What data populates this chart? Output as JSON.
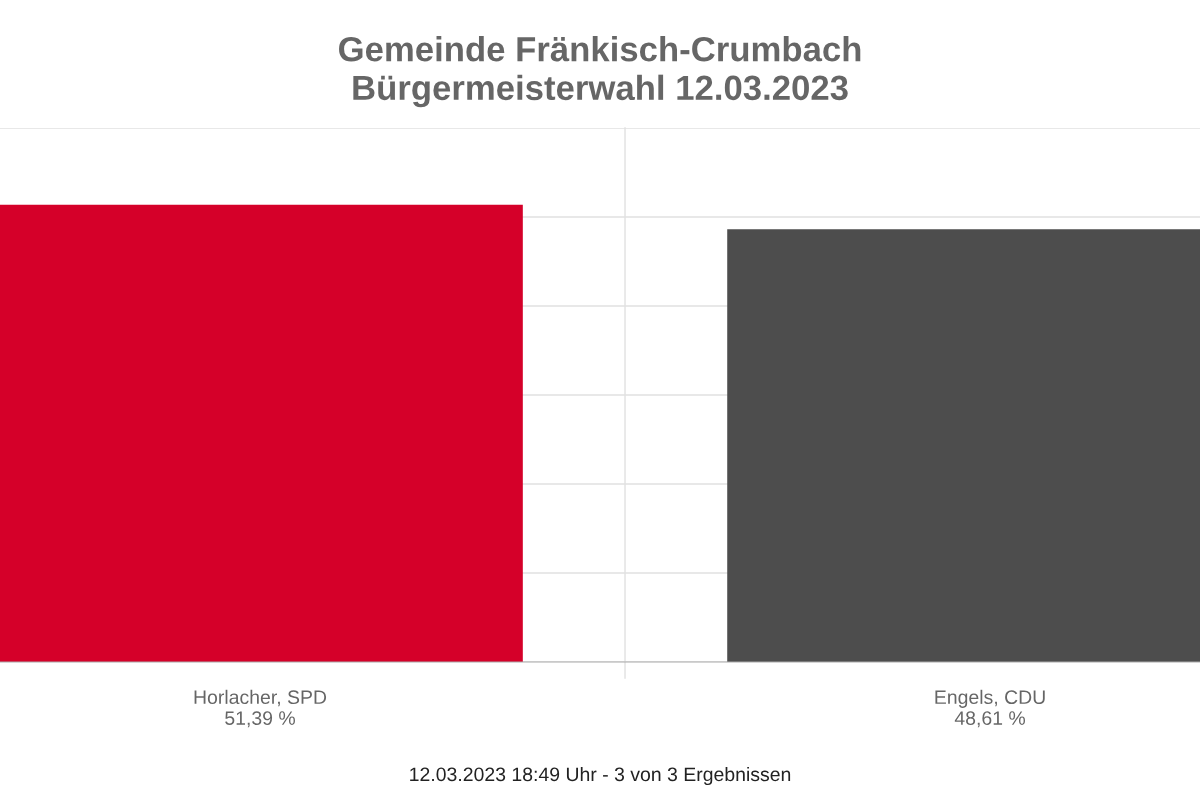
{
  "chart_data": {
    "type": "bar",
    "title": "Gemeinde Fränkisch-Crumbach\nBürgermeisterwahl 12.03.2023",
    "categories": [
      "Horlacher, SPD",
      "Engels, CDU"
    ],
    "values": [
      51.39,
      48.61
    ],
    "colors": [
      "#d50029",
      "#4d4d4d"
    ],
    "value_labels": [
      "51,39 %",
      "48,61 %"
    ],
    "ylim": [
      0,
      60
    ],
    "yticks": [
      {
        "value": 0,
        "label": null
      },
      {
        "value": 10,
        "label": null
      },
      {
        "value": 20,
        "label": null
      },
      {
        "value": 30,
        "label": null
      },
      {
        "value": 40,
        "label": null
      },
      {
        "value": 50,
        "label": null
      },
      {
        "value": 60,
        "label": null
      }
    ],
    "tick_labels": "x",
    "grid": true,
    "annotations": [
      "12.03.2023 18:49 Uhr - 3 von 3 Ergebnissen"
    ]
  }
}
